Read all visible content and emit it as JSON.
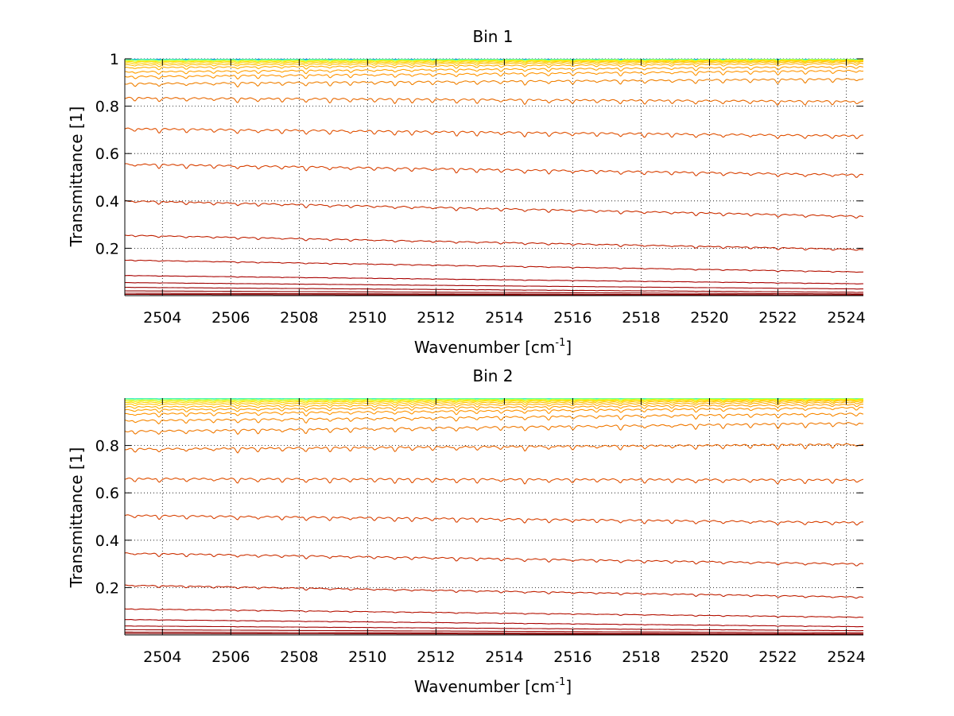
{
  "chart_data": [
    {
      "type": "line",
      "title": "Bin 1",
      "xlabel": "Wavenumber [cm",
      "xlabel_sup": "-1",
      "xlabel_end": "]",
      "ylabel": "Transmittance [1]",
      "xlim": [
        2502.9,
        2524.5
      ],
      "ylim": [
        0,
        1
      ],
      "grid": true,
      "xticks": [
        "2504",
        "2506",
        "2508",
        "2510",
        "2512",
        "2514",
        "2516",
        "2518",
        "2520",
        "2522",
        "2524"
      ],
      "yticks": [
        "0.2",
        "0.4",
        "0.6",
        "0.8",
        "1"
      ],
      "series": [
        {
          "start": 1.0,
          "end": 1.0,
          "amp": 0.0,
          "color": "#00209f"
        },
        {
          "start": 1.0,
          "end": 1.0,
          "amp": 0.001,
          "color": "#0050ff"
        },
        {
          "start": 0.998,
          "end": 0.999,
          "amp": 0.002,
          "color": "#10d0e0"
        },
        {
          "start": 0.996,
          "end": 0.998,
          "amp": 0.003,
          "color": "#70ff90"
        },
        {
          "start": 0.992,
          "end": 0.996,
          "amp": 0.004,
          "color": "#d0ff30"
        },
        {
          "start": 0.988,
          "end": 0.994,
          "amp": 0.005,
          "color": "#ffe000"
        },
        {
          "start": 0.982,
          "end": 0.991,
          "amp": 0.006,
          "color": "#ffd000"
        },
        {
          "start": 0.974,
          "end": 0.987,
          "amp": 0.008,
          "color": "#ffc000"
        },
        {
          "start": 0.963,
          "end": 0.98,
          "amp": 0.01,
          "color": "#ffb000"
        },
        {
          "start": 0.945,
          "end": 0.967,
          "amp": 0.012,
          "color": "#ffa000"
        },
        {
          "start": 0.925,
          "end": 0.95,
          "amp": 0.014,
          "color": "#ff9400"
        },
        {
          "start": 0.895,
          "end": 0.915,
          "amp": 0.016,
          "color": "#f08000"
        },
        {
          "start": 0.835,
          "end": 0.82,
          "amp": 0.018,
          "color": "#e86800"
        },
        {
          "start": 0.705,
          "end": 0.675,
          "amp": 0.018,
          "color": "#e05000"
        },
        {
          "start": 0.555,
          "end": 0.51,
          "amp": 0.016,
          "color": "#d84000"
        },
        {
          "start": 0.4,
          "end": 0.335,
          "amp": 0.012,
          "color": "#cc3000"
        },
        {
          "start": 0.255,
          "end": 0.195,
          "amp": 0.008,
          "color": "#c02000"
        },
        {
          "start": 0.15,
          "end": 0.1,
          "amp": 0.004,
          "color": "#b41000"
        },
        {
          "start": 0.085,
          "end": 0.05,
          "amp": 0.002,
          "color": "#a80000"
        },
        {
          "start": 0.055,
          "end": 0.028,
          "amp": 0.001,
          "color": "#a00000"
        },
        {
          "start": 0.035,
          "end": 0.014,
          "amp": 0.001,
          "color": "#980000"
        },
        {
          "start": 0.02,
          "end": 0.007,
          "amp": 0.0,
          "color": "#900000"
        },
        {
          "start": 0.01,
          "end": 0.003,
          "amp": 0.0,
          "color": "#8c0000"
        },
        {
          "start": 0.005,
          "end": 0.001,
          "amp": 0.0,
          "color": "#880000"
        }
      ]
    },
    {
      "type": "line",
      "title": "Bin 2",
      "xlabel": "Wavenumber [cm",
      "xlabel_sup": "-1",
      "xlabel_end": "]",
      "ylabel": "Transmittance [1]",
      "xlim": [
        2502.9,
        2524.5
      ],
      "ylim": [
        0,
        1
      ],
      "grid": true,
      "xticks": [
        "2504",
        "2506",
        "2508",
        "2510",
        "2512",
        "2514",
        "2516",
        "2518",
        "2520",
        "2522",
        "2524"
      ],
      "yticks": [
        "0.2",
        "0.4",
        "0.6",
        "0.8"
      ],
      "series": [
        {
          "start": 1.0,
          "end": 1.0,
          "amp": 0.0,
          "color": "#20e0e0"
        },
        {
          "start": 0.997,
          "end": 0.999,
          "amp": 0.002,
          "color": "#60ffa0"
        },
        {
          "start": 0.993,
          "end": 0.997,
          "amp": 0.003,
          "color": "#b0ff50"
        },
        {
          "start": 0.988,
          "end": 0.995,
          "amp": 0.005,
          "color": "#f0f000"
        },
        {
          "start": 0.982,
          "end": 0.992,
          "amp": 0.006,
          "color": "#ffd800"
        },
        {
          "start": 0.974,
          "end": 0.988,
          "amp": 0.008,
          "color": "#ffc400"
        },
        {
          "start": 0.963,
          "end": 0.982,
          "amp": 0.01,
          "color": "#ffb000"
        },
        {
          "start": 0.95,
          "end": 0.973,
          "amp": 0.012,
          "color": "#ffa000"
        },
        {
          "start": 0.933,
          "end": 0.96,
          "amp": 0.014,
          "color": "#ff9400"
        },
        {
          "start": 0.905,
          "end": 0.935,
          "amp": 0.016,
          "color": "#f88800"
        },
        {
          "start": 0.86,
          "end": 0.895,
          "amp": 0.018,
          "color": "#f07800"
        },
        {
          "start": 0.785,
          "end": 0.805,
          "amp": 0.018,
          "color": "#e86400"
        },
        {
          "start": 0.66,
          "end": 0.655,
          "amp": 0.018,
          "color": "#e05000"
        },
        {
          "start": 0.505,
          "end": 0.475,
          "amp": 0.016,
          "color": "#d84000"
        },
        {
          "start": 0.345,
          "end": 0.3,
          "amp": 0.012,
          "color": "#cc3000"
        },
        {
          "start": 0.21,
          "end": 0.16,
          "amp": 0.008,
          "color": "#c02000"
        },
        {
          "start": 0.11,
          "end": 0.075,
          "amp": 0.004,
          "color": "#b41000"
        },
        {
          "start": 0.065,
          "end": 0.035,
          "amp": 0.002,
          "color": "#a80000"
        },
        {
          "start": 0.038,
          "end": 0.018,
          "amp": 0.001,
          "color": "#a00000"
        },
        {
          "start": 0.022,
          "end": 0.009,
          "amp": 0.0,
          "color": "#980000"
        },
        {
          "start": 0.012,
          "end": 0.004,
          "amp": 0.0,
          "color": "#900000"
        },
        {
          "start": 0.006,
          "end": 0.002,
          "amp": 0.0,
          "color": "#880000"
        }
      ],
      "note_dips": [
        2503.2,
        2503.9,
        2504.7,
        2505.5,
        2506.2,
        2506.8,
        2507.5,
        2508.2,
        2508.9,
        2509.5,
        2510.2,
        2510.8,
        2511.3,
        2511.9,
        2512.6,
        2513.2,
        2513.9,
        2514.6,
        2515.3,
        2516.0,
        2516.7,
        2517.4,
        2518.1,
        2518.9,
        2519.6,
        2520.4,
        2521.2,
        2522.0,
        2522.8,
        2523.6,
        2524.3
      ]
    }
  ]
}
